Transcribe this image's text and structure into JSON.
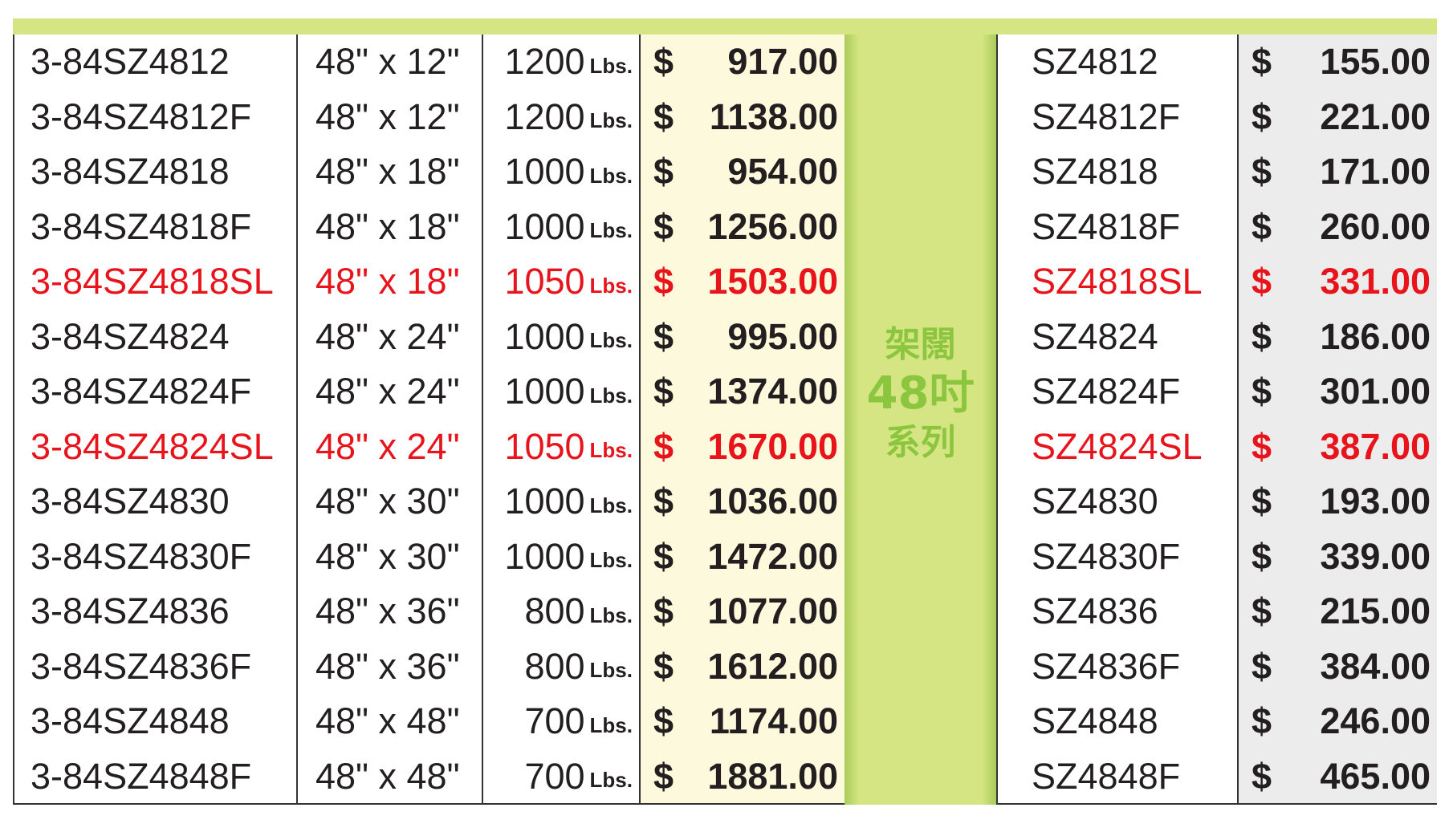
{
  "series_label": {
    "line1": "架闊",
    "line2": "48吋",
    "line3": "系列"
  },
  "colors": {
    "highlight": "#e8141c",
    "accent_green": "#8cc63f",
    "bar_green": "#d6e584"
  },
  "currency": "$",
  "unit": "Lbs.",
  "rows": [
    {
      "model": "3-84SZ4812",
      "size": "48\" x 12\"",
      "capacity": "1200",
      "price": "917.00",
      "part": "SZ4812",
      "part_price": "155.00",
      "highlight": false
    },
    {
      "model": "3-84SZ4812F",
      "size": "48\" x 12\"",
      "capacity": "1200",
      "price": "1138.00",
      "part": "SZ4812F",
      "part_price": "221.00",
      "highlight": false
    },
    {
      "model": "3-84SZ4818",
      "size": "48\" x 18\"",
      "capacity": "1000",
      "price": "954.00",
      "part": "SZ4818",
      "part_price": "171.00",
      "highlight": false
    },
    {
      "model": "3-84SZ4818F",
      "size": "48\" x 18\"",
      "capacity": "1000",
      "price": "1256.00",
      "part": "SZ4818F",
      "part_price": "260.00",
      "highlight": false
    },
    {
      "model": "3-84SZ4818SL",
      "size": "48\" x 18\"",
      "capacity": "1050",
      "price": "1503.00",
      "part": "SZ4818SL",
      "part_price": "331.00",
      "highlight": true
    },
    {
      "model": "3-84SZ4824",
      "size": "48\" x 24\"",
      "capacity": "1000",
      "price": "995.00",
      "part": "SZ4824",
      "part_price": "186.00",
      "highlight": false
    },
    {
      "model": "3-84SZ4824F",
      "size": "48\" x 24\"",
      "capacity": "1000",
      "price": "1374.00",
      "part": "SZ4824F",
      "part_price": "301.00",
      "highlight": false
    },
    {
      "model": "3-84SZ4824SL",
      "size": "48\" x 24\"",
      "capacity": "1050",
      "price": "1670.00",
      "part": "SZ4824SL",
      "part_price": "387.00",
      "highlight": true
    },
    {
      "model": "3-84SZ4830",
      "size": "48\" x 30\"",
      "capacity": "1000",
      "price": "1036.00",
      "part": "SZ4830",
      "part_price": "193.00",
      "highlight": false
    },
    {
      "model": "3-84SZ4830F",
      "size": "48\" x 30\"",
      "capacity": "1000",
      "price": "1472.00",
      "part": "SZ4830F",
      "part_price": "339.00",
      "highlight": false
    },
    {
      "model": "3-84SZ4836",
      "size": "48\" x 36\"",
      "capacity": "800",
      "price": "1077.00",
      "part": "SZ4836",
      "part_price": "215.00",
      "highlight": false
    },
    {
      "model": "3-84SZ4836F",
      "size": "48\" x 36\"",
      "capacity": "800",
      "price": "1612.00",
      "part": "SZ4836F",
      "part_price": "384.00",
      "highlight": false
    },
    {
      "model": "3-84SZ4848",
      "size": "48\" x 48\"",
      "capacity": "700",
      "price": "1174.00",
      "part": "SZ4848",
      "part_price": "246.00",
      "highlight": false
    },
    {
      "model": "3-84SZ4848F",
      "size": "48\" x 48\"",
      "capacity": "700",
      "price": "1881.00",
      "part": "SZ4848F",
      "part_price": "465.00",
      "highlight": false
    }
  ]
}
